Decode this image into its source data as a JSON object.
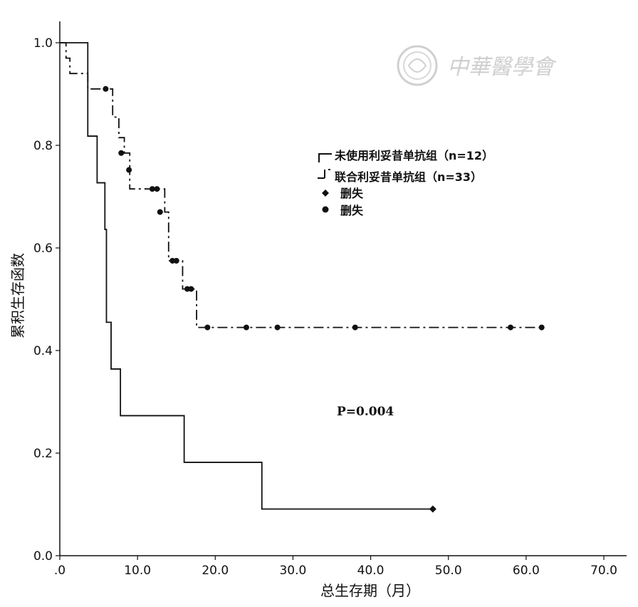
{
  "chart_data": {
    "type": "line",
    "xlabel": "总生存期（月）",
    "ylabel": "累积生存函数",
    "xlim": [
      0,
      72
    ],
    "ylim": [
      0,
      1.05
    ],
    "x_ticks": [
      0,
      10,
      20,
      30,
      40,
      50,
      60,
      70
    ],
    "x_tick_labels": [
      ".0",
      "10.0",
      "20.0",
      "30.0",
      "40.0",
      "50.0",
      "60.0",
      "70.0"
    ],
    "y_ticks": [
      0,
      0.2,
      0.4,
      0.6,
      0.8,
      1.0
    ],
    "y_tick_labels": [
      "0.0",
      "0.2",
      "0.4",
      "0.6",
      "0.8",
      "1.0"
    ],
    "grid": false,
    "legend_position": "upper-right",
    "annotation": "P=0.004",
    "series": [
      {
        "name": "未使用利妥昔单抗组（n=12）",
        "style": "solid",
        "steps": [
          [
            0,
            1.0
          ],
          [
            3.6,
            0.818
          ],
          [
            4.8,
            0.727
          ],
          [
            5.8,
            0.636
          ],
          [
            6.0,
            0.455
          ],
          [
            6.6,
            0.364
          ],
          [
            7.8,
            0.273
          ],
          [
            16.0,
            0.182
          ],
          [
            26.0,
            0.091
          ]
        ],
        "end_x": 48,
        "censored": [
          [
            48,
            0.091
          ]
        ],
        "censor_marker": "diamond"
      },
      {
        "name": "联合利妥昔单抗组（n=33）",
        "style": "dash-dot",
        "steps": [
          [
            0,
            1.0
          ],
          [
            0.8,
            0.97
          ],
          [
            1.3,
            0.94
          ],
          [
            3.6,
            0.91
          ],
          [
            6.8,
            0.855
          ],
          [
            7.6,
            0.815
          ],
          [
            8.3,
            0.785
          ],
          [
            9.0,
            0.715
          ],
          [
            13.5,
            0.67
          ],
          [
            14.0,
            0.575
          ],
          [
            15.8,
            0.52
          ],
          [
            17.6,
            0.445
          ]
        ],
        "end_x": 62,
        "censored": [
          [
            5.9,
            0.91
          ],
          [
            7.9,
            0.785
          ],
          [
            8.9,
            0.752
          ],
          [
            11.9,
            0.715
          ],
          [
            12.5,
            0.715
          ],
          [
            12.9,
            0.67
          ],
          [
            14.5,
            0.575
          ],
          [
            15.0,
            0.575
          ],
          [
            16.4,
            0.52
          ],
          [
            16.9,
            0.52
          ],
          [
            19.0,
            0.445
          ],
          [
            24.0,
            0.445
          ],
          [
            28.0,
            0.445
          ],
          [
            38.0,
            0.445
          ],
          [
            58.0,
            0.445
          ],
          [
            62.0,
            0.445
          ]
        ],
        "censor_marker": "circle"
      }
    ],
    "legend": [
      {
        "label": "未使用利妥昔单抗组（n=12）",
        "kind": "solid-step"
      },
      {
        "label": "联合利妥昔单抗组（n=33）",
        "kind": "dashdot-step"
      },
      {
        "label": "删失",
        "kind": "diamond"
      },
      {
        "label": "删失",
        "kind": "circle"
      }
    ],
    "watermark": {
      "text": "中華醫學會",
      "kind": "logo"
    }
  },
  "colors": {
    "line": "#111111",
    "axis": "#111111",
    "watermark": "#cfcfcf",
    "background": "#ffffff"
  }
}
